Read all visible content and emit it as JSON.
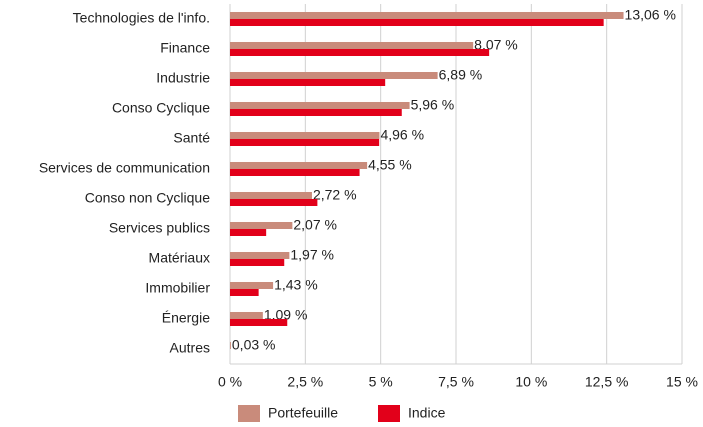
{
  "chart_data": {
    "type": "hbar",
    "categories": [
      "Technologies de l'info.",
      "Finance",
      "Industrie",
      "Conso Cyclique",
      "Santé",
      "Services de communication",
      "Conso non Cyclique",
      "Services publics",
      "Matériaux",
      "Immobilier",
      "Énergie",
      "Autres"
    ],
    "series": [
      {
        "name": "Portefeuille",
        "color": "#c98b7b",
        "values": [
          13.06,
          8.07,
          6.89,
          5.96,
          4.96,
          4.55,
          2.72,
          2.07,
          1.97,
          1.43,
          1.09,
          0.03
        ],
        "value_labels": [
          "13,06 %",
          "8,07 %",
          "6,89 %",
          "5,96 %",
          "4,96 %",
          "4,55 %",
          "2,72 %",
          "2,07 %",
          "1,97 %",
          "1,43 %",
          "1,09 %",
          "0,03 %"
        ]
      },
      {
        "name": "Indice",
        "color": "#e2001a",
        "values": [
          12.4,
          8.6,
          5.15,
          5.7,
          4.95,
          4.3,
          2.9,
          1.2,
          1.8,
          0.95,
          1.9,
          0
        ]
      }
    ],
    "xlim": [
      0,
      15
    ],
    "xticks": [
      {
        "value": 0,
        "label": "0 %"
      },
      {
        "value": 2.5,
        "label": "2,5 %"
      },
      {
        "value": 5,
        "label": "5 %"
      },
      {
        "value": 7.5,
        "label": "7,5 %"
      },
      {
        "value": 10,
        "label": "10 %"
      },
      {
        "value": 12.5,
        "label": "12,5 %"
      },
      {
        "value": 15,
        "label": "15 %"
      }
    ],
    "grid": true,
    "legend": "bottom"
  }
}
